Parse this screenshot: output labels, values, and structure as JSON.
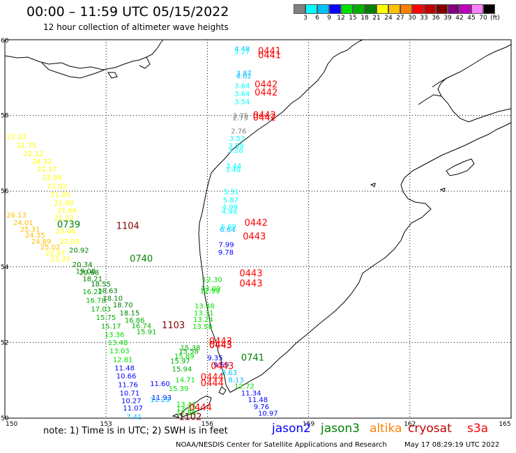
{
  "title": "00:00 – 11:59 UTC 05/15/2022",
  "subtitle": "12 hour collection of altimeter wave heights",
  "colorbar": {
    "colors": [
      "#808080",
      "#00ffff",
      "#00bfff",
      "#0000ff",
      "#00e000",
      "#00b000",
      "#008000",
      "#ffff00",
      "#ffc000",
      "#ff8000",
      "#ff0000",
      "#c00000",
      "#800000",
      "#800080",
      "#c000c0",
      "#ff80ff",
      "#000000"
    ],
    "labels": [
      "3",
      "6",
      "9",
      "12",
      "15",
      "18",
      "21",
      "24",
      "27",
      "30",
      "33",
      "36",
      "39",
      "42",
      "45",
      "70",
      "(ft)"
    ]
  },
  "axes": {
    "lon_ticks": [
      "150",
      "153",
      "156",
      "159",
      "162",
      "165"
    ],
    "lat_ticks": [
      "50",
      "52",
      "54",
      "56",
      "58",
      "60"
    ]
  },
  "note": "note:  1) Time is in UTC;  2) SWH is in feet",
  "legend": [
    {
      "label": "jason2",
      "color": "#0000ff"
    },
    {
      "label": "jason3",
      "color": "#008000"
    },
    {
      "label": "altika",
      "color": "#ff8000"
    },
    {
      "label": "cryosat",
      "color": "#c00000"
    },
    {
      "label": "s3a",
      "color": "#ff0000"
    }
  ],
  "credit": "NOAA/NESDIS Center for Satellite Applications and Research",
  "generated": "May 17 08:29:19 UTC 2022",
  "observations": [
    {
      "lon": 156.8,
      "lat": 59.7,
      "v": "4.48",
      "c": "#00bfff"
    },
    {
      "lon": 156.8,
      "lat": 59.62,
      "v": "3.27",
      "c": "#00ffff"
    },
    {
      "lon": 156.85,
      "lat": 59.05,
      "v": "3.87",
      "c": "#00bfff"
    },
    {
      "lon": 156.85,
      "lat": 58.98,
      "v": "4.02",
      "c": "#00bfff"
    },
    {
      "lon": 156.8,
      "lat": 58.72,
      "v": "3.64",
      "c": "#00ffff"
    },
    {
      "lon": 156.8,
      "lat": 58.51,
      "v": "3.64",
      "c": "#00ffff"
    },
    {
      "lon": 156.8,
      "lat": 58.3,
      "v": "3.54",
      "c": "#00ffff"
    },
    {
      "lon": 156.75,
      "lat": 57.93,
      "v": "2.75",
      "c": "#808080"
    },
    {
      "lon": 156.75,
      "lat": 57.87,
      "v": "2.75",
      "c": "#808080"
    },
    {
      "lon": 156.7,
      "lat": 57.52,
      "v": "2.76",
      "c": "#808080"
    },
    {
      "lon": 156.65,
      "lat": 57.33,
      "v": "3.53",
      "c": "#00ffff"
    },
    {
      "lon": 156.62,
      "lat": 57.14,
      "v": "3.59",
      "c": "#00ffff"
    },
    {
      "lon": 156.6,
      "lat": 57.02,
      "v": "3.28",
      "c": "#00ffff"
    },
    {
      "lon": 156.55,
      "lat": 56.6,
      "v": "3.44",
      "c": "#00ffff"
    },
    {
      "lon": 156.53,
      "lat": 56.5,
      "v": "3.49",
      "c": "#00ffff"
    },
    {
      "lon": 156.48,
      "lat": 55.92,
      "v": "5.31",
      "c": "#00ffff"
    },
    {
      "lon": 156.46,
      "lat": 55.7,
      "v": "5.87",
      "c": "#00ffff"
    },
    {
      "lon": 156.44,
      "lat": 55.52,
      "v": "4.99",
      "c": "#00ffff"
    },
    {
      "lon": 156.42,
      "lat": 55.4,
      "v": "4.99",
      "c": "#00ffff"
    },
    {
      "lon": 156.4,
      "lat": 55.0,
      "v": "6.69",
      "c": "#00ffff"
    },
    {
      "lon": 156.37,
      "lat": 54.92,
      "v": "6.64",
      "c": "#00bfff"
    },
    {
      "lon": 156.33,
      "lat": 54.52,
      "v": "7.99",
      "c": "#0000ff"
    },
    {
      "lon": 156.32,
      "lat": 54.32,
      "v": "9.78",
      "c": "#0000ff"
    },
    {
      "lon": 155.85,
      "lat": 53.6,
      "v": "12.30",
      "c": "#00e000"
    },
    {
      "lon": 155.8,
      "lat": 53.36,
      "v": "13.09",
      "c": "#00e000"
    },
    {
      "lon": 155.78,
      "lat": 53.3,
      "v": "12.99",
      "c": "#00e000"
    },
    {
      "lon": 155.62,
      "lat": 52.9,
      "v": "13.48",
      "c": "#00e000"
    },
    {
      "lon": 155.6,
      "lat": 52.72,
      "v": "13.31",
      "c": "#00e000"
    },
    {
      "lon": 155.58,
      "lat": 52.54,
      "v": "13.24",
      "c": "#00e000"
    },
    {
      "lon": 155.56,
      "lat": 52.36,
      "v": "13.58",
      "c": "#00e000"
    },
    {
      "lon": 155.2,
      "lat": 51.8,
      "v": "15.38",
      "c": "#00b000"
    },
    {
      "lon": 155.15,
      "lat": 51.7,
      "v": "15.58",
      "c": "#00b000"
    },
    {
      "lon": 155.02,
      "lat": 51.57,
      "v": "15.89",
      "c": "#00e000"
    },
    {
      "lon": 154.9,
      "lat": 51.45,
      "v": "15.97",
      "c": "#00b000"
    },
    {
      "lon": 154.95,
      "lat": 51.23,
      "v": "15.94",
      "c": "#00b000"
    },
    {
      "lon": 155.05,
      "lat": 50.95,
      "v": "14.71",
      "c": "#00e000"
    },
    {
      "lon": 154.85,
      "lat": 50.72,
      "v": "15.39",
      "c": "#00e000"
    },
    {
      "lon": 155.08,
      "lat": 50.3,
      "v": "13.41",
      "c": "#00e000"
    },
    {
      "lon": 155.08,
      "lat": 50.18,
      "v": "13.07",
      "c": "#00e000"
    },
    {
      "lon": 155.08,
      "lat": 50.08,
      "v": "12.89",
      "c": "#00e000"
    },
    {
      "lon": 150.05,
      "lat": 57.38,
      "v": "22.23",
      "c": "#ffff00"
    },
    {
      "lon": 150.35,
      "lat": 57.15,
      "v": "21.75",
      "c": "#ffff00"
    },
    {
      "lon": 150.55,
      "lat": 56.92,
      "v": "22.12",
      "c": "#ffff00"
    },
    {
      "lon": 150.8,
      "lat": 56.72,
      "v": "24.32",
      "c": "#ffff00"
    },
    {
      "lon": 150.95,
      "lat": 56.52,
      "v": "22.17",
      "c": "#ffff00"
    },
    {
      "lon": 151.1,
      "lat": 56.3,
      "v": "23.94",
      "c": "#ffff00"
    },
    {
      "lon": 151.25,
      "lat": 56.07,
      "v": "21.92",
      "c": "#ffff00"
    },
    {
      "lon": 151.35,
      "lat": 55.85,
      "v": "21.05",
      "c": "#ffff00"
    },
    {
      "lon": 151.45,
      "lat": 55.63,
      "v": "21.60",
      "c": "#ffff00"
    },
    {
      "lon": 151.55,
      "lat": 55.42,
      "v": "21.66",
      "c": "#ffff00"
    },
    {
      "lon": 151.45,
      "lat": 55.23,
      "v": "21.22",
      "c": "#ffff00"
    },
    {
      "lon": 150.05,
      "lat": 55.3,
      "v": "26.13",
      "c": "#ffc000"
    },
    {
      "lon": 150.25,
      "lat": 55.1,
      "v": "24.01",
      "c": "#ffc000"
    },
    {
      "lon": 150.45,
      "lat": 54.93,
      "v": "25.31",
      "c": "#ffc000"
    },
    {
      "lon": 150.6,
      "lat": 54.77,
      "v": "24.35",
      "c": "#ffc000"
    },
    {
      "lon": 150.78,
      "lat": 54.6,
      "v": "24.89",
      "c": "#ffc000"
    },
    {
      "lon": 151.5,
      "lat": 54.88,
      "v": "23.06",
      "c": "#ffff00"
    },
    {
      "lon": 151.62,
      "lat": 54.6,
      "v": "22.05",
      "c": "#ffff00"
    },
    {
      "lon": 151.05,
      "lat": 54.46,
      "v": "25.02",
      "c": "#ffc000"
    },
    {
      "lon": 151.2,
      "lat": 54.3,
      "v": "22.97",
      "c": "#ffff00"
    },
    {
      "lon": 151.35,
      "lat": 54.14,
      "v": "23.22",
      "c": "#ffff00"
    },
    {
      "lon": 151.9,
      "lat": 54.37,
      "v": "20.92",
      "c": "#008000"
    },
    {
      "lon": 152.0,
      "lat": 54.0,
      "v": "20.34",
      "c": "#008000"
    },
    {
      "lon": 152.1,
      "lat": 53.82,
      "v": "19.08",
      "c": "#008000"
    },
    {
      "lon": 152.2,
      "lat": 53.78,
      "v": "20.68",
      "c": "#008000"
    },
    {
      "lon": 152.3,
      "lat": 53.62,
      "v": "18.21",
      "c": "#008000"
    },
    {
      "lon": 152.55,
      "lat": 53.48,
      "v": "18.55",
      "c": "#008000"
    },
    {
      "lon": 152.3,
      "lat": 53.28,
      "v": "16.22",
      "c": "#00b000"
    },
    {
      "lon": 152.75,
      "lat": 53.31,
      "v": "18.63",
      "c": "#008000"
    },
    {
      "lon": 152.4,
      "lat": 53.05,
      "v": "16.78",
      "c": "#00b000"
    },
    {
      "lon": 152.9,
      "lat": 53.1,
      "v": "18.10",
      "c": "#008000"
    },
    {
      "lon": 153.2,
      "lat": 52.93,
      "v": "18.70",
      "c": "#008000"
    },
    {
      "lon": 152.55,
      "lat": 52.82,
      "v": "17.03",
      "c": "#00b000"
    },
    {
      "lon": 153.4,
      "lat": 52.72,
      "v": "18.15",
      "c": "#008000"
    },
    {
      "lon": 152.7,
      "lat": 52.6,
      "v": "15.75",
      "c": "#00b000"
    },
    {
      "lon": 153.55,
      "lat": 52.52,
      "v": "16.86",
      "c": "#00b000"
    },
    {
      "lon": 153.75,
      "lat": 52.38,
      "v": "16.74",
      "c": "#00b000"
    },
    {
      "lon": 152.85,
      "lat": 52.37,
      "v": "15.17",
      "c": "#00b000"
    },
    {
      "lon": 153.9,
      "lat": 52.22,
      "v": "15.91",
      "c": "#00b000"
    },
    {
      "lon": 152.95,
      "lat": 52.15,
      "v": "13.36",
      "c": "#00e000"
    },
    {
      "lon": 153.05,
      "lat": 51.93,
      "v": "13.48",
      "c": "#00e000"
    },
    {
      "lon": 153.1,
      "lat": 51.71,
      "v": "13.03",
      "c": "#00e000"
    },
    {
      "lon": 153.2,
      "lat": 51.48,
      "v": "12.81",
      "c": "#00e000"
    },
    {
      "lon": 153.25,
      "lat": 51.26,
      "v": "11.48",
      "c": "#0000ff"
    },
    {
      "lon": 153.3,
      "lat": 51.05,
      "v": "10.66",
      "c": "#0000ff"
    },
    {
      "lon": 153.35,
      "lat": 50.82,
      "v": "11.76",
      "c": "#0000ff"
    },
    {
      "lon": 153.4,
      "lat": 50.6,
      "v": "10.71",
      "c": "#0000ff"
    },
    {
      "lon": 153.45,
      "lat": 50.4,
      "v": "10.27",
      "c": "#0000ff"
    },
    {
      "lon": 153.5,
      "lat": 50.2,
      "v": "11.07",
      "c": "#0000ff"
    },
    {
      "lon": 153.6,
      "lat": 49.97,
      "v": "7.41",
      "c": "#00bfff"
    },
    {
      "lon": 154.3,
      "lat": 50.85,
      "v": "11.60",
      "c": "#0000ff"
    },
    {
      "lon": 154.35,
      "lat": 50.48,
      "v": "11.93",
      "c": "#0000ff"
    },
    {
      "lon": 154.3,
      "lat": 50.42,
      "v": "11.29",
      "c": "#00bfff"
    },
    {
      "lon": 156.0,
      "lat": 51.53,
      "v": "9.35",
      "c": "#0000ff"
    },
    {
      "lon": 156.18,
      "lat": 51.34,
      "v": "9.59",
      "c": "#0000ff"
    },
    {
      "lon": 156.42,
      "lat": 51.14,
      "v": "8.63",
      "c": "#00bfff"
    },
    {
      "lon": 156.62,
      "lat": 50.95,
      "v": "8.13",
      "c": "#00bfff"
    },
    {
      "lon": 156.8,
      "lat": 50.78,
      "v": "12.72",
      "c": "#00e000"
    },
    {
      "lon": 157.0,
      "lat": 50.6,
      "v": "11.34",
      "c": "#0000ff"
    },
    {
      "lon": 157.2,
      "lat": 50.42,
      "v": "11.48",
      "c": "#0000ff"
    },
    {
      "lon": 157.37,
      "lat": 50.24,
      "v": "9.76",
      "c": "#0000ff"
    },
    {
      "lon": 157.5,
      "lat": 50.06,
      "v": "10.97",
      "c": "#0000ff"
    }
  ],
  "passes": [
    {
      "lon": 157.5,
      "lat": 59.62,
      "v": "0441",
      "c": "#ff0000"
    },
    {
      "lon": 157.5,
      "lat": 59.51,
      "v": "0441",
      "c": "#ff0000"
    },
    {
      "lon": 157.4,
      "lat": 58.74,
      "v": "0442",
      "c": "#ff0000"
    },
    {
      "lon": 157.4,
      "lat": 58.53,
      "v": "0442",
      "c": "#ff0000"
    },
    {
      "lon": 157.35,
      "lat": 57.93,
      "v": "0442",
      "c": "#ff0000"
    },
    {
      "lon": 157.35,
      "lat": 57.86,
      "v": "0442",
      "c": "#ff0000"
    },
    {
      "lon": 157.1,
      "lat": 55.08,
      "v": "0442",
      "c": "#ff0000"
    },
    {
      "lon": 157.05,
      "lat": 54.72,
      "v": "0443",
      "c": "#ff0000"
    },
    {
      "lon": 156.95,
      "lat": 53.75,
      "v": "0443",
      "c": "#ff0000"
    },
    {
      "lon": 156.95,
      "lat": 53.48,
      "v": "0443",
      "c": "#ff0000"
    },
    {
      "lon": 156.05,
      "lat": 51.95,
      "v": "0443",
      "c": "#ff0000"
    },
    {
      "lon": 156.05,
      "lat": 51.86,
      "v": "0443",
      "c": "#ff0000"
    },
    {
      "lon": 156.05,
      "lat": 51.85,
      "v": "0443",
      "c": "#ff0000"
    },
    {
      "lon": 156.1,
      "lat": 51.3,
      "v": "0443",
      "c": "#ff0000"
    },
    {
      "lon": 155.8,
      "lat": 51.0,
      "v": "0444",
      "c": "#ff0000"
    },
    {
      "lon": 155.8,
      "lat": 50.85,
      "v": "0444",
      "c": "#ff0000"
    },
    {
      "lon": 155.45,
      "lat": 50.2,
      "v": "0444",
      "c": "#ff0000"
    },
    {
      "lon": 151.55,
      "lat": 55.04,
      "v": "0739",
      "c": "#008000"
    },
    {
      "lon": 153.7,
      "lat": 54.13,
      "v": "0740",
      "c": "#008000"
    },
    {
      "lon": 157.0,
      "lat": 51.52,
      "v": "0741",
      "c": "#008000"
    },
    {
      "lon": 153.3,
      "lat": 55.0,
      "v": "1104",
      "c": "#800000"
    },
    {
      "lon": 154.65,
      "lat": 52.38,
      "v": "1103",
      "c": "#800000"
    },
    {
      "lon": 155.15,
      "lat": 49.95,
      "v": "1102",
      "c": "#800000"
    }
  ]
}
